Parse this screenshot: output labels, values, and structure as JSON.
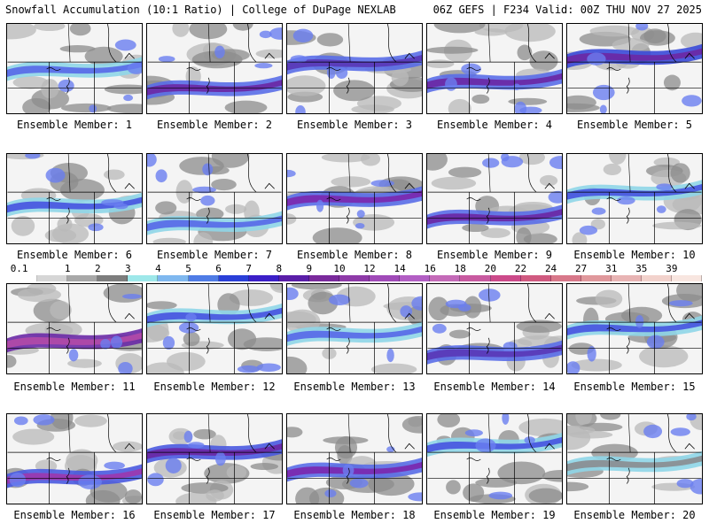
{
  "header": {
    "left_title": "Snowfall Accumulation (10:1 Ratio) | College of DuPage NEXLAB",
    "right_title": "06Z GEFS | F234 Valid: 00Z THU NOV 27 2025"
  },
  "members": [
    {
      "label": "Ensemble Member: 1"
    },
    {
      "label": "Ensemble Member: 2"
    },
    {
      "label": "Ensemble Member: 3"
    },
    {
      "label": "Ensemble Member: 4"
    },
    {
      "label": "Ensemble Member: 5"
    },
    {
      "label": "Ensemble Member: 6"
    },
    {
      "label": "Ensemble Member: 7"
    },
    {
      "label": "Ensemble Member: 8"
    },
    {
      "label": "Ensemble Member: 9"
    },
    {
      "label": "Ensemble Member: 10"
    },
    {
      "label": "Ensemble Member: 11"
    },
    {
      "label": "Ensemble Member: 12"
    },
    {
      "label": "Ensemble Member: 13"
    },
    {
      "label": "Ensemble Member: 14"
    },
    {
      "label": "Ensemble Member: 15"
    },
    {
      "label": "Ensemble Member: 16"
    },
    {
      "label": "Ensemble Member: 17"
    },
    {
      "label": "Ensemble Member: 18"
    },
    {
      "label": "Ensemble Member: 19"
    },
    {
      "label": "Ensemble Member: 20"
    }
  ],
  "colorbar": {
    "labels": [
      "0.1",
      "1",
      "2",
      "3",
      "4",
      "5",
      "6",
      "7",
      "8",
      "9",
      "10",
      "12",
      "14",
      "16",
      "18",
      "20",
      "22",
      "24",
      "27",
      "31",
      "35",
      "39"
    ],
    "colors": [
      "#ffffff",
      "#d6d6d6",
      "#a8a8a8",
      "#7d7d7d",
      "#9ee8ea",
      "#7fb8ef",
      "#4f7ce6",
      "#2a3fd8",
      "#3b1fc8",
      "#5a1ea8",
      "#7a2a9c",
      "#8e3aa8",
      "#a04ab8",
      "#b25ec4",
      "#c46ab8",
      "#c85aa0",
      "#cc4a8a",
      "#d05a80",
      "#d8788a",
      "#e0989c",
      "#e8b4b4",
      "#f2d2cc",
      "#f8e6e0"
    ]
  }
}
